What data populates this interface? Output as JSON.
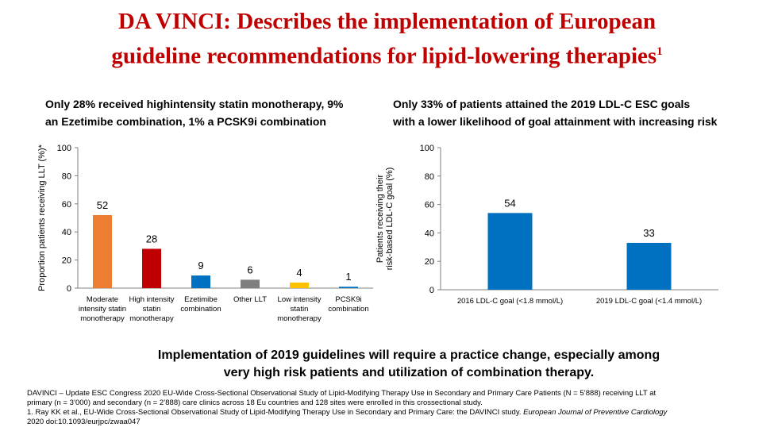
{
  "title": {
    "line1": "DA VINCI: Describes the implementation of European",
    "line2": "guideline recommendations for lipid-lowering therapies",
    "sup": "1"
  },
  "left_panel": {
    "heading_line1": "Only 28% received highintensity statin monotherapy, 9%",
    "heading_line2": "an Ezetimibe combination, 1% a PCSK9i combination"
  },
  "right_panel": {
    "heading_line1": "Only 33% of patients attained the 2019 LDL-C ESC goals",
    "heading_line2": "with a lower likelihood of goal attainment with increasing risk"
  },
  "implication": {
    "line1": "Implementation of 2019 guidelines will require a practice change, especially among",
    "line2": "very high risk patients and utilization of combination therapy."
  },
  "footnotes": {
    "line1": "DAVINCI – Update ESC Congress 2020 EU-Wide Cross-Sectional Observational Study of Lipid-Modifying Therapy Use in Secondary and Primary Care Patients (N = 5’888) receiving LLT at",
    "line2": "primary (n = 3’000) and secondary (n = 2’888) care clinics across 18 Eu countries and 128 sites were enrolled in this crossectional study.",
    "line3a": "1. Ray KK et al., EU-Wide Cross-Sectional Observational Study of Lipid-Modifying Therapy Use in Secondary and Primary Care: the DAVINCI study. ",
    "line3b": "European Journal of Preventive Cardiology",
    "line4": "2020 doi:10.1093/eurjpc/zwaa047"
  },
  "chart_data": [
    {
      "type": "bar",
      "ylabel": "Proportion patients receiving LLT (%)*",
      "ylim": [
        0,
        100
      ],
      "yticks": [
        0,
        20,
        40,
        60,
        80,
        100
      ],
      "grid": false,
      "categories": [
        [
          "Moderate",
          "intensity statin",
          "monotherapy"
        ],
        [
          "High intensity",
          "statin",
          "monotherapy"
        ],
        [
          "Ezetimibe",
          "combination"
        ],
        [
          "Other LLT"
        ],
        [
          "Low intensity",
          "statin",
          "monotherapy"
        ],
        [
          "PCSK9i",
          "combination"
        ]
      ],
      "values": [
        52,
        28,
        9,
        6,
        4,
        1
      ],
      "colors": [
        "#ed7d31",
        "#c00000",
        "#0070c0",
        "#7f7f7f",
        "#ffc000",
        "#0070c0"
      ]
    },
    {
      "type": "bar",
      "ylabel": [
        "Patients receiving their",
        "risk-based LDL-C goal (%)"
      ],
      "ylim": [
        0,
        100
      ],
      "yticks": [
        0,
        20,
        40,
        60,
        80,
        100
      ],
      "grid": false,
      "categories": [
        [
          "2016 LDL-C goal (<1.8 mmol/L)"
        ],
        [
          "2019 LDL-C goal (<1.4 mmol/L)"
        ]
      ],
      "values": [
        54,
        33
      ],
      "colors": [
        "#0070c0",
        "#0070c0"
      ]
    }
  ]
}
